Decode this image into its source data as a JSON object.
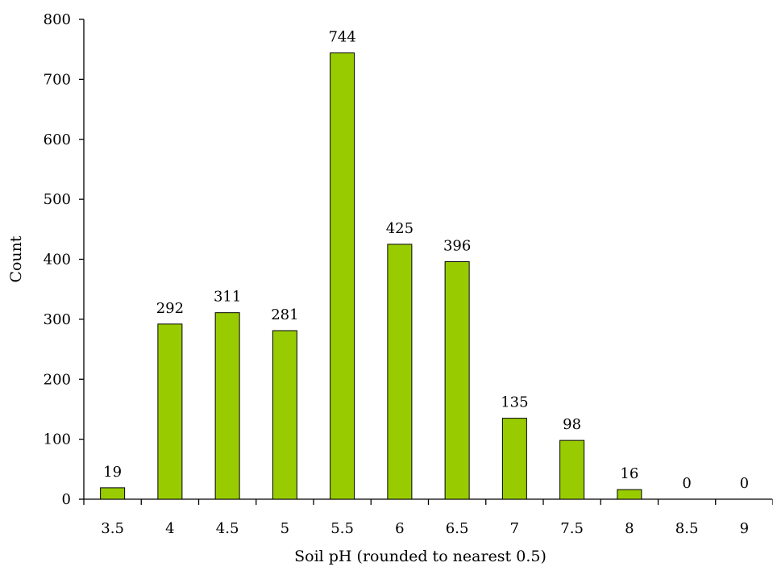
{
  "chart_data": {
    "type": "bar",
    "title": "",
    "xlabel": "Soil pH (rounded to nearest 0.5)",
    "ylabel": "Count",
    "categories": [
      "3.5",
      "4",
      "4.5",
      "5",
      "5.5",
      "6",
      "6.5",
      "7",
      "7.5",
      "8",
      "8.5",
      "9"
    ],
    "values": [
      19,
      292,
      311,
      281,
      744,
      425,
      396,
      135,
      98,
      16,
      0,
      0
    ],
    "data_labels": [
      "19",
      "292",
      "311",
      "281",
      "744",
      "425",
      "396",
      "135",
      "98",
      "16",
      "0",
      "0"
    ],
    "ylim": [
      0,
      800
    ],
    "yticks": [
      0,
      100,
      200,
      300,
      400,
      500,
      600,
      700,
      800
    ],
    "ytick_labels": [
      "0",
      "100",
      "200",
      "300",
      "400",
      "500",
      "600",
      "700",
      "800"
    ],
    "grid": false,
    "legend": "none",
    "bar_color": "#99cc00"
  }
}
